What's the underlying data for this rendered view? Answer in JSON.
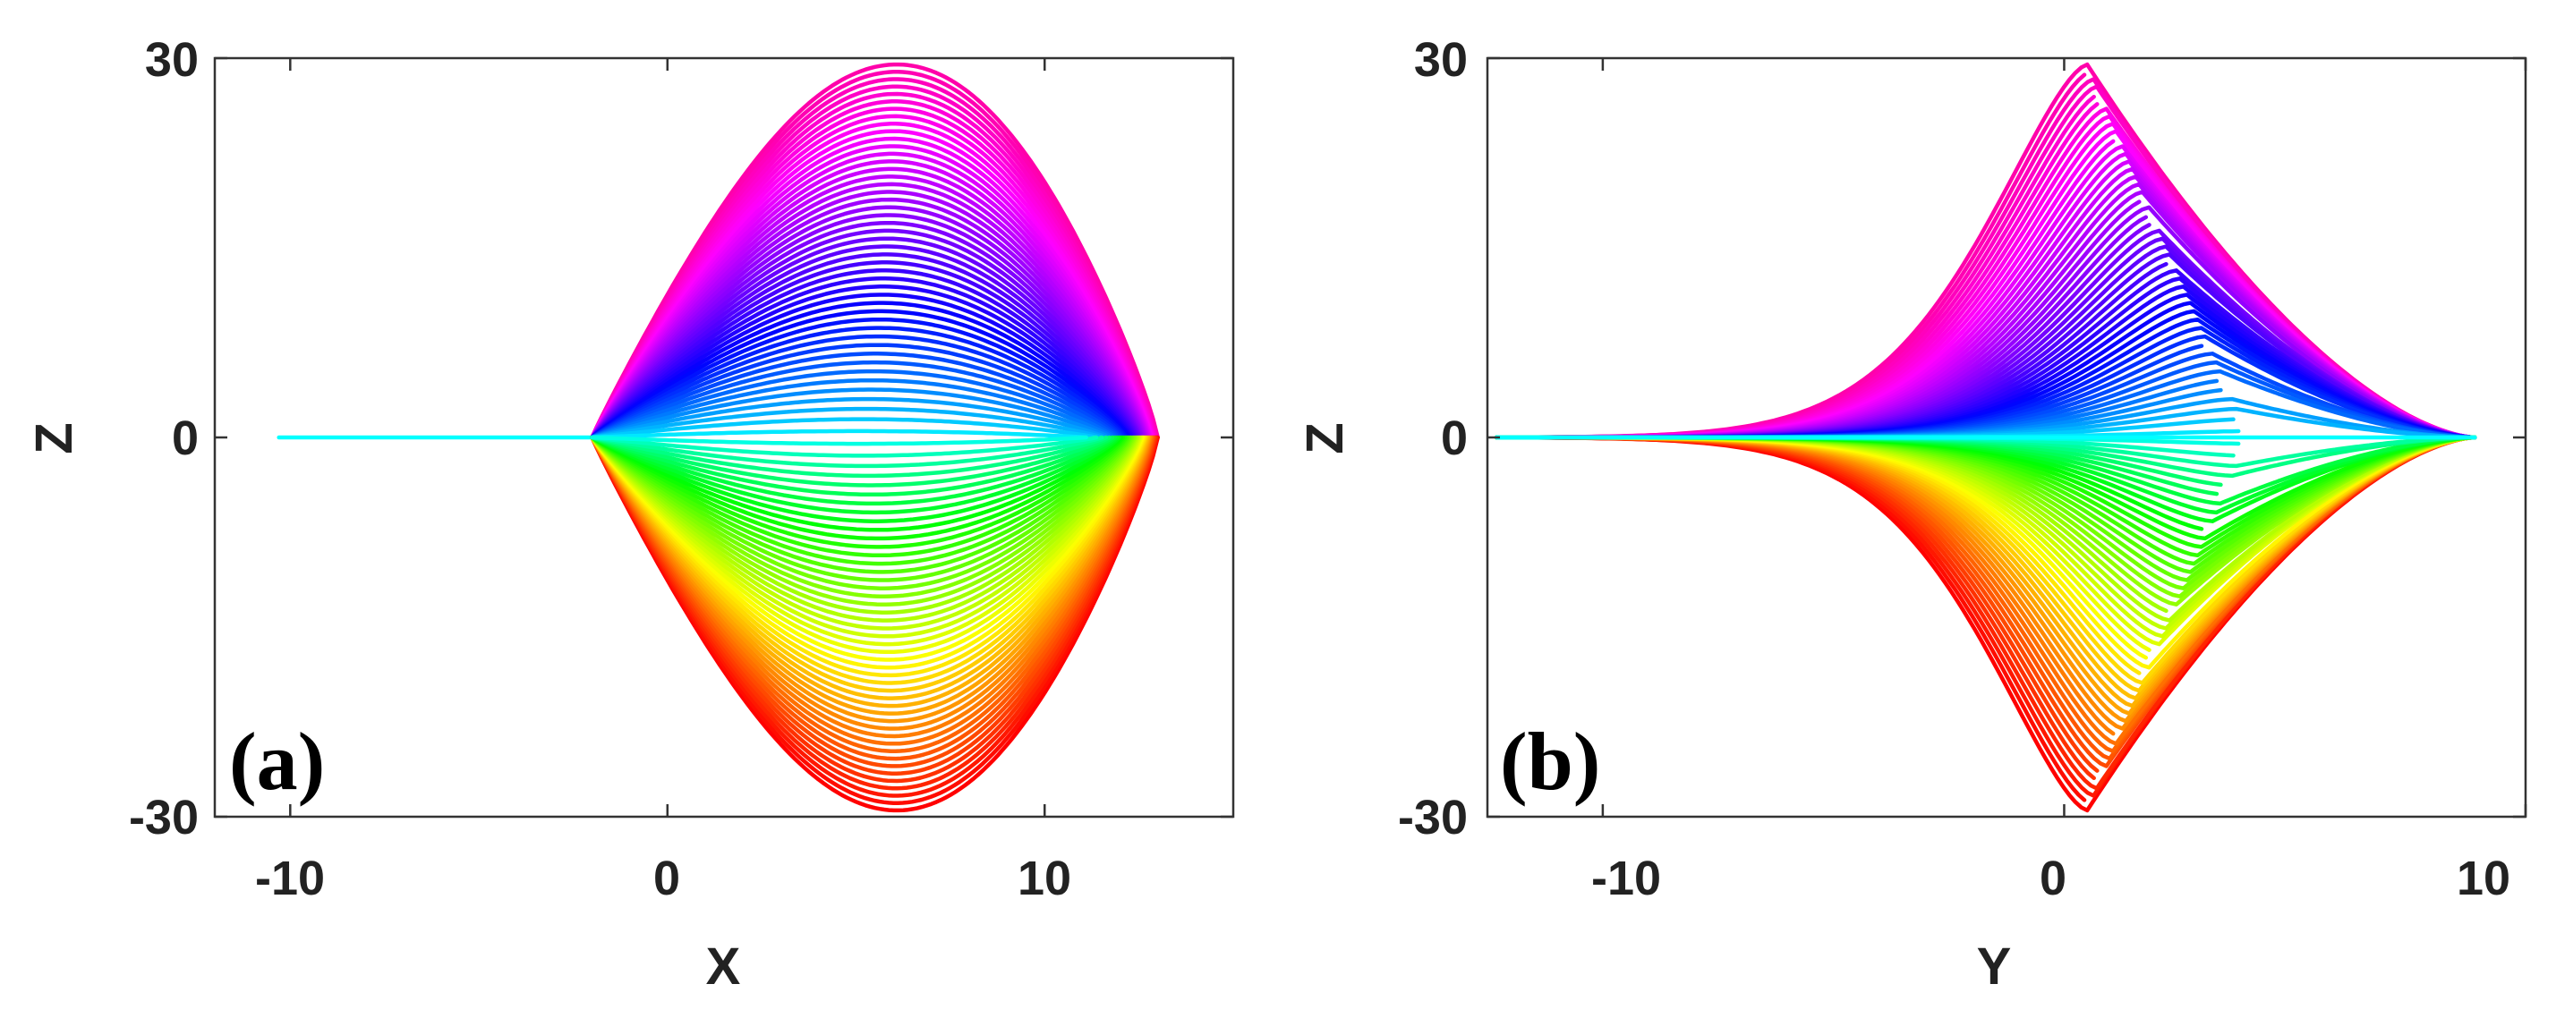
{
  "chart_data": [
    {
      "type": "line",
      "panel_label": "(a)",
      "xlabel": "X",
      "ylabel": "Z",
      "xlim": [
        -12,
        15
      ],
      "ylim": [
        -30,
        30
      ],
      "xticks": [
        -10,
        0,
        10
      ],
      "xtick_labels": [
        "-10",
        "0",
        "10"
      ],
      "yticks": [
        -30,
        0,
        30
      ],
      "ytick_labels": [
        "-30",
        "0",
        "30"
      ],
      "grid": false,
      "legend": "none",
      "colormap": "hsv (cyan near Z=0, blue/magenta for Z>0, green/yellow/red for Z<0)",
      "curve_family": {
        "tail_x_start": -10.3,
        "split_x": -2,
        "peak_x": 6.5,
        "right_x_range": [
          10.5,
          13
        ],
        "amplitude_range": [
          0.5,
          29.5
        ],
        "envelope": "symmetric about Z=0"
      }
    },
    {
      "type": "line",
      "panel_label": "(b)",
      "xlabel": "Y",
      "ylabel": "Z",
      "xlim": [
        -12.5,
        10
      ],
      "ylim": [
        -30,
        30
      ],
      "xticks": [
        -10,
        0,
        10
      ],
      "xtick_labels": [
        "-10",
        "0",
        "10"
      ],
      "yticks": [
        -30,
        0,
        30
      ],
      "ytick_labels": [
        "-30",
        "0",
        "30"
      ],
      "grid": false,
      "legend": "none",
      "colormap": "hsv (cyan near Z=0, blue/magenta for Z>0, green/yellow/red for Z<0)",
      "curve_family": {
        "tail_y_start": -12.3,
        "end_y": 8.9,
        "outer_peak_y": 0.5,
        "fold_y": 1.4,
        "amplitude_range": [
          0.5,
          29.5
        ],
        "envelope": "cusp-shaped, symmetric about Z=0"
      }
    }
  ],
  "colors": {
    "frame": "#333333",
    "text": "#222222"
  }
}
